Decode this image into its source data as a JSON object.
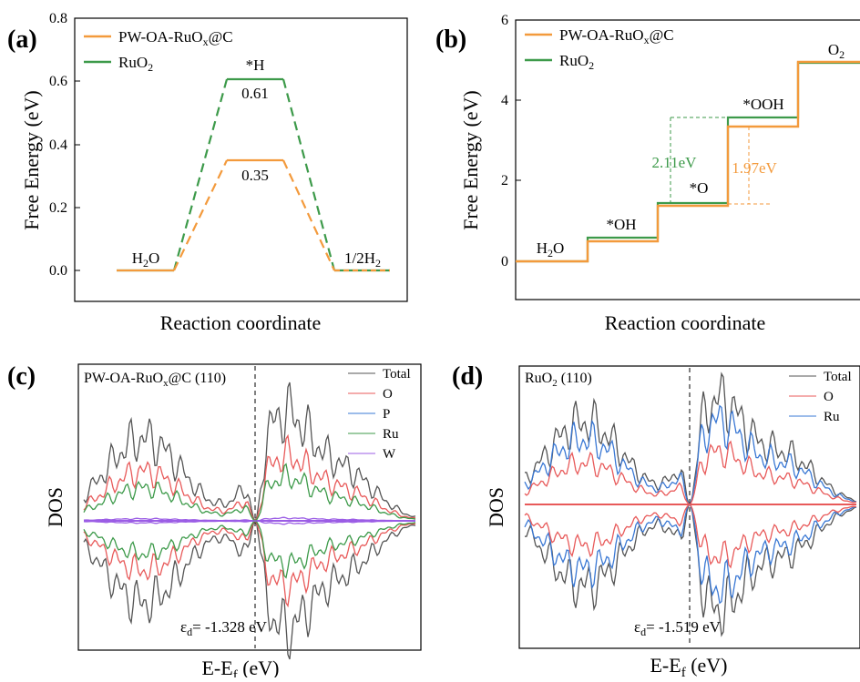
{
  "chart_data": [
    {
      "panel": "(a)",
      "type": "line",
      "ylabel": "Free Energy (eV)",
      "xlabel": "Reaction coordinate",
      "ylim": [
        -0.05,
        0.8
      ],
      "yticks": [
        "0.0",
        "0.2",
        "0.4",
        "0.6",
        "0.8"
      ],
      "legend": [
        "PW-OA-RuOx@C",
        "RuO2"
      ],
      "states": [
        "H2O",
        "*H",
        "1/2H2"
      ],
      "series": [
        {
          "name": "PW-OA-RuOx@C",
          "color": "#f39a3c",
          "values": [
            0,
            0.35,
            0
          ]
        },
        {
          "name": "RuO2",
          "color": "#3d9a4a",
          "values": [
            0,
            0.61,
            0
          ]
        }
      ],
      "annotations": [
        "*H",
        "0.61",
        "0.35",
        "H2O",
        "1/2H2"
      ]
    },
    {
      "panel": "(b)",
      "type": "line",
      "ylabel": "Free Energy (eV)",
      "xlabel": "Reaction coordinate",
      "ylim": [
        -1,
        6
      ],
      "yticks": [
        "0",
        "2",
        "4",
        "6"
      ],
      "legend": [
        "PW-OA-RuOx@C",
        "RuO2"
      ],
      "states": [
        "H2O",
        "*OH",
        "*O",
        "*OOH",
        "O2"
      ],
      "series": [
        {
          "name": "PW-OA-RuOx@C",
          "color": "#f39a3c",
          "values": [
            0,
            0.5,
            1.38,
            3.35,
            4.92
          ]
        },
        {
          "name": "RuO2",
          "color": "#3d9a4a",
          "values": [
            0,
            0.6,
            1.45,
            3.56,
            4.92
          ]
        }
      ],
      "annotations": [
        "2.11eV",
        "1.97eV",
        "H2O",
        "*OH",
        "*O",
        "*OOH",
        "O2"
      ]
    },
    {
      "panel": "(c)",
      "type": "line",
      "title": "PW-OA-RuOx@C (110)",
      "ylabel": "DOS",
      "xlabel": "E-Ef (eV)",
      "legend": [
        "Total",
        "O",
        "P",
        "Ru",
        "W"
      ],
      "series": [
        {
          "name": "Total",
          "color": "#555555"
        },
        {
          "name": "O",
          "color": "#e85a5a"
        },
        {
          "name": "P",
          "color": "#3a78d4"
        },
        {
          "name": "Ru",
          "color": "#3d9a4a"
        },
        {
          "name": "W",
          "color": "#9b5de5"
        }
      ],
      "annotation": "εd= -1.328 eV"
    },
    {
      "panel": "(d)",
      "type": "line",
      "title": "RuO2 (110)",
      "ylabel": "DOS",
      "xlabel": "E-Ef (eV)",
      "legend": [
        "Total",
        "O",
        "Ru"
      ],
      "series": [
        {
          "name": "Total",
          "color": "#555555"
        },
        {
          "name": "O",
          "color": "#e85a5a"
        },
        {
          "name": "Ru",
          "color": "#3a78d4"
        }
      ],
      "annotation": "εd= -1.519 eV"
    }
  ]
}
